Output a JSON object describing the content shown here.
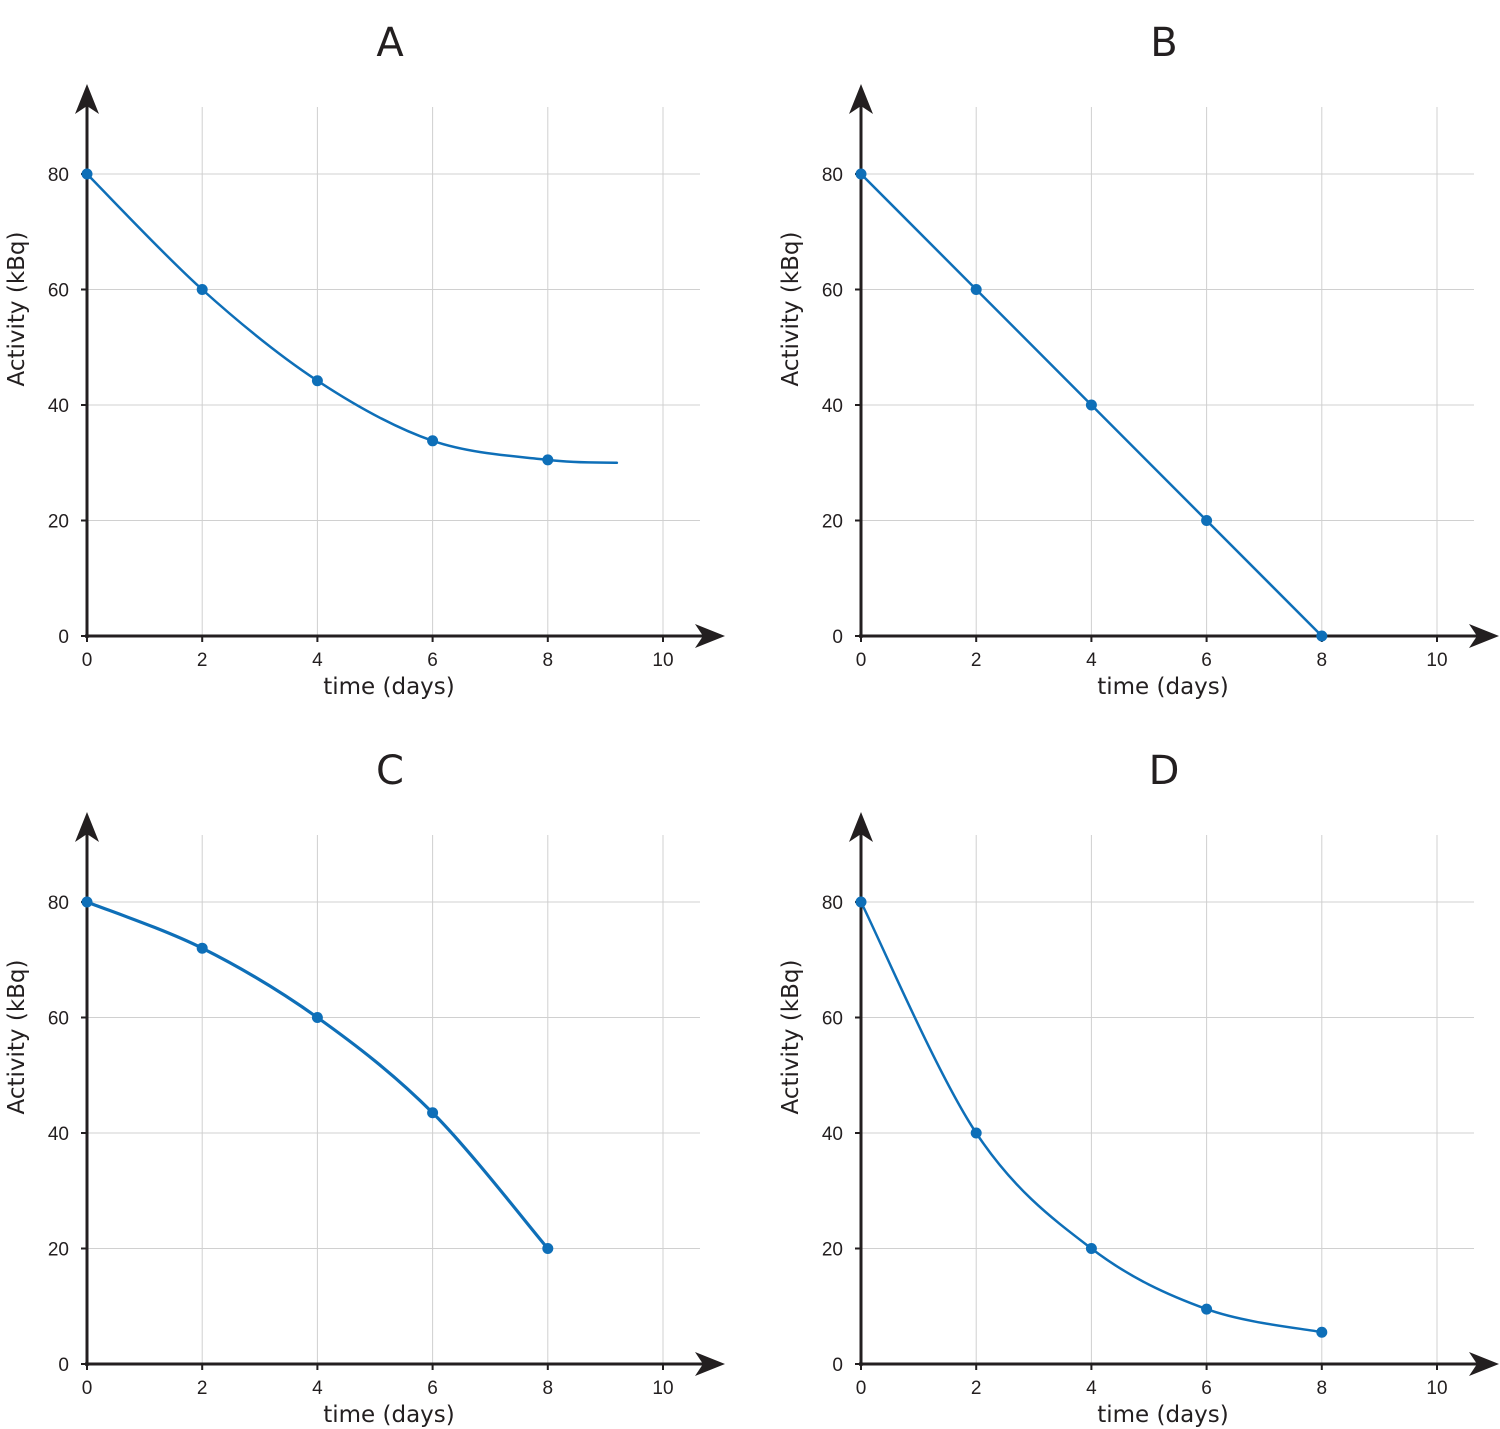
{
  "colors": {
    "series": "#0e6fb8",
    "axis": "#231f20",
    "grid": "#d0d0d0"
  },
  "chart_data": [
    {
      "type": "line",
      "title": "A",
      "xlabel": "time (days)",
      "ylabel": "Activity (kBq)",
      "xticks": [
        0,
        2,
        4,
        6,
        8,
        10
      ],
      "yticks": [
        0,
        20,
        40,
        60,
        80
      ],
      "xlim": [
        0,
        11
      ],
      "ylim": [
        0,
        90
      ],
      "grid": true,
      "x": [
        0,
        2,
        4,
        6,
        8
      ],
      "values": [
        80,
        60,
        44.2,
        33.8,
        30.5
      ],
      "curve_extends_to": [
        9.2,
        30
      ],
      "smooth": true
    },
    {
      "type": "line",
      "title": "B",
      "xlabel": "time (days)",
      "ylabel": "Activity (kBq)",
      "xticks": [
        0,
        2,
        4,
        6,
        8,
        10
      ],
      "yticks": [
        0,
        20,
        40,
        60,
        80
      ],
      "xlim": [
        0,
        11
      ],
      "ylim": [
        0,
        90
      ],
      "grid": true,
      "x": [
        0,
        2,
        4,
        6,
        8
      ],
      "values": [
        80,
        60,
        40,
        20,
        0
      ],
      "smooth": false
    },
    {
      "type": "line",
      "title": "C",
      "xlabel": "time (days)",
      "ylabel": "Activity (kBq)",
      "xticks": [
        0,
        2,
        4,
        6,
        8,
        10
      ],
      "yticks": [
        0,
        20,
        40,
        60,
        80
      ],
      "xlim": [
        0,
        11
      ],
      "ylim": [
        0,
        90
      ],
      "grid": true,
      "x": [
        0,
        2,
        4,
        6,
        8
      ],
      "values": [
        80,
        72,
        60,
        43.5,
        20
      ],
      "smooth": true
    },
    {
      "type": "line",
      "title": "D",
      "xlabel": "time (days)",
      "ylabel": "Activity (kBq)",
      "xticks": [
        0,
        2,
        4,
        6,
        8,
        10
      ],
      "yticks": [
        0,
        20,
        40,
        60,
        80
      ],
      "xlim": [
        0,
        11
      ],
      "ylim": [
        0,
        90
      ],
      "grid": true,
      "x": [
        0,
        2,
        4,
        6,
        8
      ],
      "values": [
        80,
        40,
        20,
        9.5,
        5.5
      ],
      "smooth": true
    }
  ]
}
